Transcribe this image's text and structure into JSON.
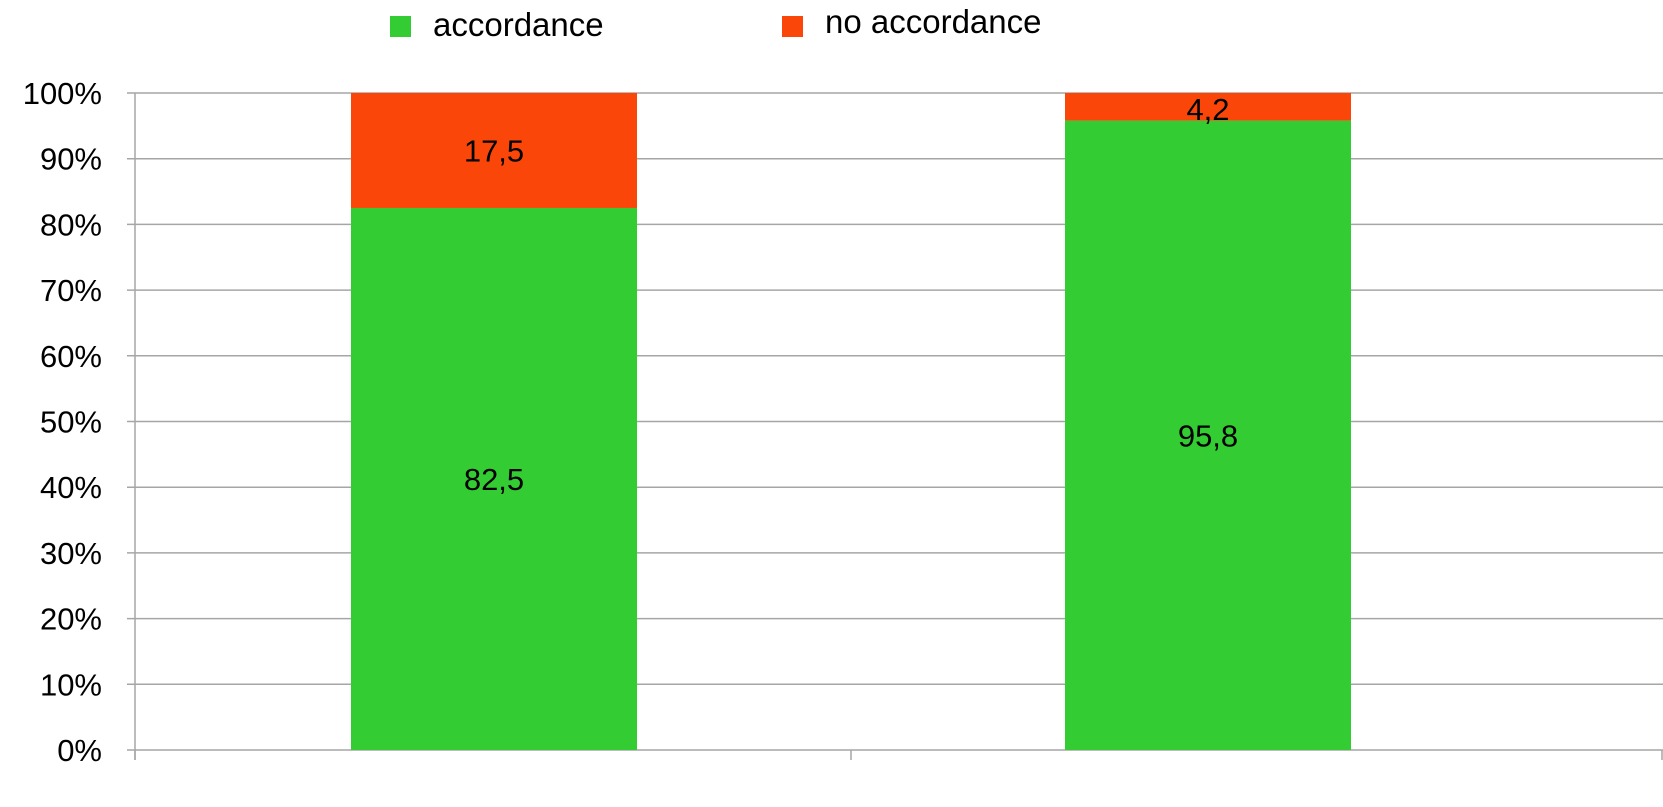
{
  "chart_data": {
    "type": "bar",
    "stacked": true,
    "categories": [
      "",
      ""
    ],
    "series": [
      {
        "name": "accordance",
        "values": [
          82.5,
          95.8
        ],
        "labels": [
          "82,5",
          "95,8"
        ],
        "color": "#33cc33"
      },
      {
        "name": "no accordance",
        "values": [
          17.5,
          4.2
        ],
        "labels": [
          "17,5",
          "4,2"
        ],
        "color": "#fa4608"
      }
    ],
    "ylim": [
      0,
      100
    ],
    "yticks": [
      "0%",
      "10%",
      "20%",
      "30%",
      "40%",
      "50%",
      "60%",
      "70%",
      "80%",
      "90%",
      "100%"
    ],
    "title": "",
    "xlabel": "",
    "ylabel": "",
    "grid": true,
    "legend_position": "top",
    "gridline_color": "#a6a6a6"
  }
}
